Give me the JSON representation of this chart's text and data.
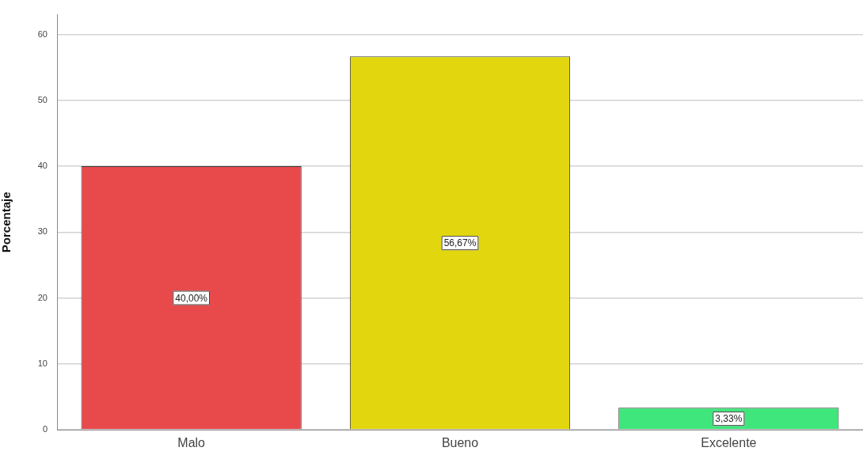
{
  "chart_data": {
    "type": "bar",
    "ylabel": "Porcentaje",
    "categories": [
      "Malo",
      "Bueno",
      "Excelente"
    ],
    "values": [
      40.0,
      56.67,
      3.33
    ],
    "colors": [
      "#e84a4c",
      "#e2d60e",
      "#3fe67c"
    ],
    "value_labels": [
      "40,00%",
      "56,67%",
      "3,33%"
    ],
    "ylim": [
      0,
      63
    ],
    "yticks": [
      0,
      10,
      20,
      30,
      40,
      50,
      60
    ],
    "grid": "y"
  }
}
